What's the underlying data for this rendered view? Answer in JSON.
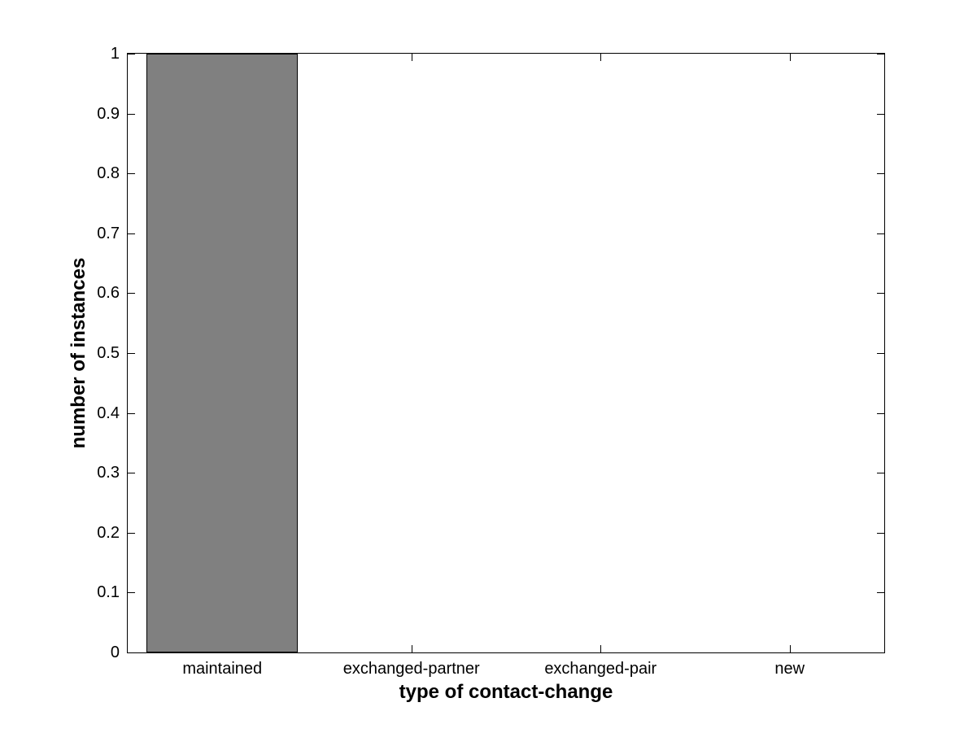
{
  "figure": {
    "background": "#ffffff",
    "title": ""
  },
  "chart_data": {
    "type": "bar",
    "categories": [
      "maintained",
      "exchanged-partner",
      "exchanged-pair",
      "new"
    ],
    "values": [
      1,
      0,
      0,
      0
    ],
    "title": "",
    "xlabel": "type of contact-change",
    "ylabel": "number of instances",
    "ylim": [
      0,
      1
    ],
    "yticks": [
      0,
      0.1,
      0.2,
      0.3,
      0.4,
      0.5,
      0.6,
      0.7,
      0.8,
      0.9,
      1
    ],
    "ytick_labels": [
      "0",
      "0.1",
      "0.2",
      "0.3",
      "0.4",
      "0.5",
      "0.6",
      "0.7",
      "0.8",
      "0.9",
      "1"
    ],
    "xlim_categories": [
      0.5,
      4.5
    ],
    "bar_width_fraction": 0.8,
    "bar_color": "#808080",
    "bar_edge_color": "#000000",
    "axis_color": "#000000",
    "text_color": "#000000",
    "grid": false,
    "legend": null,
    "tick_direction": "in",
    "box": true
  }
}
